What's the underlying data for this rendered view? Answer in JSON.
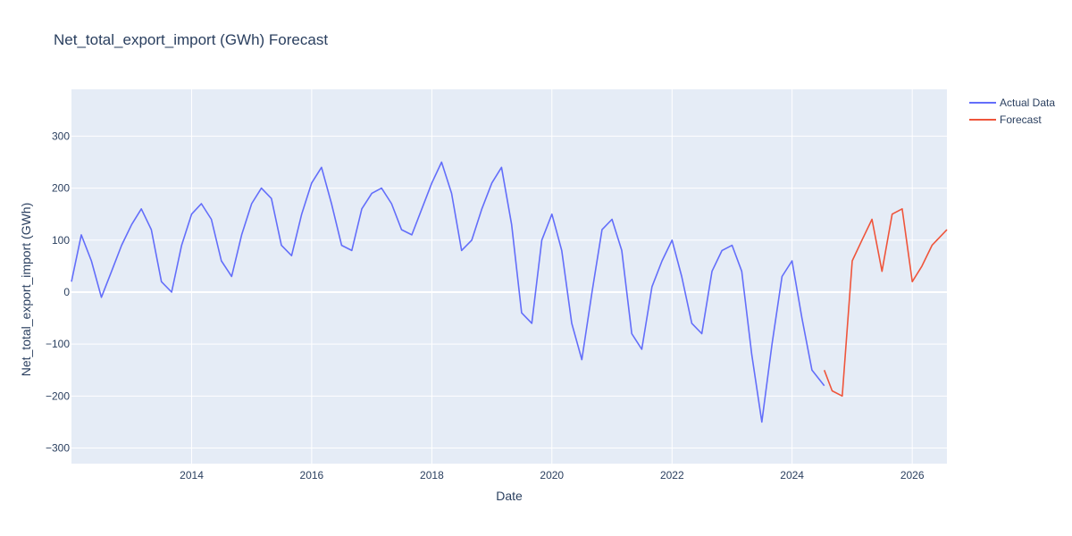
{
  "chart_data": {
    "type": "line",
    "title": "Net_total_export_import (GWh) Forecast",
    "xlabel": "Date",
    "ylabel": "Net_total_export_import (GWh)",
    "x_range": [
      "2012-01-01",
      "2026-07-31"
    ],
    "ylim": [
      -330,
      390
    ],
    "x_ticks": [
      {
        "date": "2014-01-01",
        "label": "2014"
      },
      {
        "date": "2016-01-01",
        "label": "2016"
      },
      {
        "date": "2018-01-01",
        "label": "2018"
      },
      {
        "date": "2020-01-01",
        "label": "2020"
      },
      {
        "date": "2022-01-01",
        "label": "2022"
      },
      {
        "date": "2024-01-01",
        "label": "2024"
      },
      {
        "date": "2026-01-01",
        "label": "2026"
      }
    ],
    "y_ticks": [
      {
        "value": 300,
        "label": "300"
      },
      {
        "value": 200,
        "label": "200"
      },
      {
        "value": 100,
        "label": "100"
      },
      {
        "value": 0,
        "label": "0"
      },
      {
        "value": -100,
        "label": "−100"
      },
      {
        "value": -200,
        "label": "−200"
      },
      {
        "value": -300,
        "label": "−300"
      }
    ],
    "grid": true,
    "legend_position": "top-right",
    "series": [
      {
        "name": "Actual Data",
        "color": "#636efa",
        "points": [
          [
            "2012-01-01",
            20
          ],
          [
            "2012-03-01",
            110
          ],
          [
            "2012-05-01",
            60
          ],
          [
            "2012-07-01",
            -10
          ],
          [
            "2012-09-01",
            40
          ],
          [
            "2012-11-01",
            90
          ],
          [
            "2013-01-01",
            130
          ],
          [
            "2013-03-01",
            160
          ],
          [
            "2013-05-01",
            120
          ],
          [
            "2013-07-01",
            20
          ],
          [
            "2013-09-01",
            0
          ],
          [
            "2013-11-01",
            90
          ],
          [
            "2014-01-01",
            150
          ],
          [
            "2014-03-01",
            170
          ],
          [
            "2014-05-01",
            140
          ],
          [
            "2014-07-01",
            60
          ],
          [
            "2014-09-01",
            30
          ],
          [
            "2014-11-01",
            110
          ],
          [
            "2015-01-01",
            170
          ],
          [
            "2015-03-01",
            200
          ],
          [
            "2015-05-01",
            180
          ],
          [
            "2015-07-01",
            90
          ],
          [
            "2015-09-01",
            70
          ],
          [
            "2015-11-01",
            150
          ],
          [
            "2016-01-01",
            210
          ],
          [
            "2016-03-01",
            240
          ],
          [
            "2016-05-01",
            170
          ],
          [
            "2016-07-01",
            90
          ],
          [
            "2016-09-01",
            80
          ],
          [
            "2016-11-01",
            160
          ],
          [
            "2017-01-01",
            190
          ],
          [
            "2017-03-01",
            200
          ],
          [
            "2017-05-01",
            170
          ],
          [
            "2017-07-01",
            120
          ],
          [
            "2017-09-01",
            110
          ],
          [
            "2017-11-01",
            160
          ],
          [
            "2018-01-01",
            210
          ],
          [
            "2018-03-01",
            250
          ],
          [
            "2018-05-01",
            190
          ],
          [
            "2018-07-01",
            80
          ],
          [
            "2018-09-01",
            100
          ],
          [
            "2018-11-01",
            160
          ],
          [
            "2019-01-01",
            210
          ],
          [
            "2019-03-01",
            240
          ],
          [
            "2019-05-01",
            130
          ],
          [
            "2019-07-01",
            -40
          ],
          [
            "2019-09-01",
            -60
          ],
          [
            "2019-11-01",
            100
          ],
          [
            "2020-01-01",
            150
          ],
          [
            "2020-03-01",
            80
          ],
          [
            "2020-05-01",
            -60
          ],
          [
            "2020-07-01",
            -130
          ],
          [
            "2020-09-01",
            0
          ],
          [
            "2020-11-01",
            120
          ],
          [
            "2021-01-01",
            140
          ],
          [
            "2021-03-01",
            80
          ],
          [
            "2021-05-01",
            -80
          ],
          [
            "2021-07-01",
            -110
          ],
          [
            "2021-09-01",
            10
          ],
          [
            "2021-11-01",
            60
          ],
          [
            "2022-01-01",
            100
          ],
          [
            "2022-03-01",
            30
          ],
          [
            "2022-05-01",
            -60
          ],
          [
            "2022-07-01",
            -80
          ],
          [
            "2022-09-01",
            40
          ],
          [
            "2022-11-01",
            80
          ],
          [
            "2023-01-01",
            90
          ],
          [
            "2023-03-01",
            40
          ],
          [
            "2023-05-01",
            -120
          ],
          [
            "2023-07-01",
            -250
          ],
          [
            "2023-09-01",
            -100
          ],
          [
            "2023-11-01",
            30
          ],
          [
            "2024-01-01",
            60
          ],
          [
            "2024-03-01",
            -50
          ],
          [
            "2024-05-01",
            -150
          ],
          [
            "2024-07-15",
            -180
          ]
        ]
      },
      {
        "name": "Forecast",
        "color": "#ef553b",
        "points": [
          [
            "2024-07-15",
            -150
          ],
          [
            "2024-09-01",
            -190
          ],
          [
            "2024-11-01",
            -200
          ],
          [
            "2025-01-01",
            60
          ],
          [
            "2025-03-01",
            100
          ],
          [
            "2025-05-01",
            140
          ],
          [
            "2025-07-01",
            40
          ],
          [
            "2025-09-01",
            150
          ],
          [
            "2025-11-01",
            160
          ],
          [
            "2026-01-01",
            20
          ],
          [
            "2026-03-01",
            50
          ],
          [
            "2026-05-01",
            90
          ],
          [
            "2026-07-31",
            120
          ]
        ]
      }
    ]
  }
}
